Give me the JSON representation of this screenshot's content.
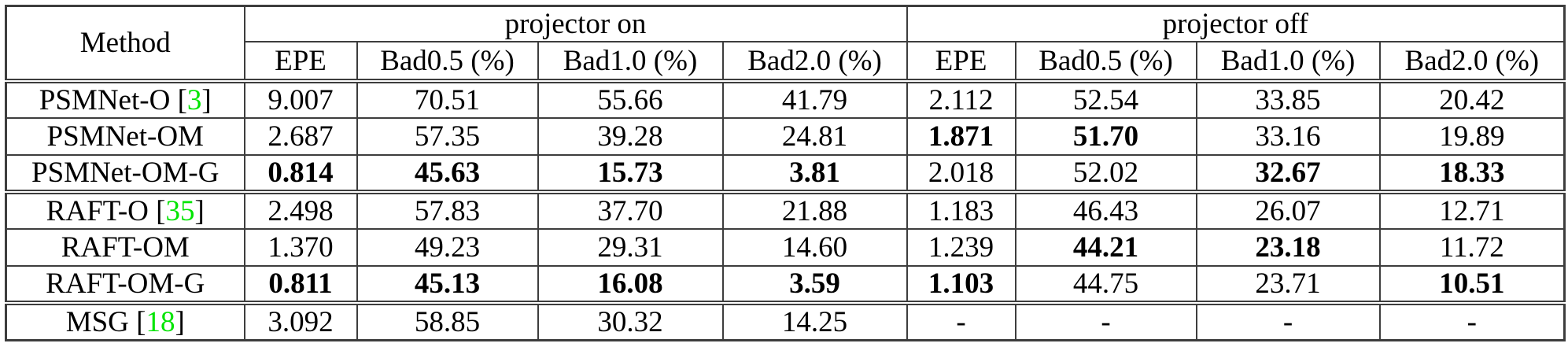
{
  "table": {
    "brackets": {
      "open": " [",
      "close": "]"
    },
    "dash": "-",
    "colors": {
      "citation_green": "#00e400",
      "border_gray": "#3d3d3d",
      "text_black": "#000000",
      "background_white": "#ffffff"
    },
    "header": {
      "method_label": "Method",
      "groups": [
        {
          "label": "projector on"
        },
        {
          "label": "projector off"
        }
      ],
      "sub_columns": [
        "EPE",
        "Bad0.5 (%)",
        "Bad1.0 (%)",
        "Bad2.0 (%)"
      ]
    },
    "rows": [
      {
        "method": "PSMNet-O",
        "cite": "3",
        "group_start": true,
        "on": [
          {
            "text": "9.007",
            "bold": false
          },
          {
            "text": "70.51",
            "bold": false
          },
          {
            "text": "55.66",
            "bold": false
          },
          {
            "text": "41.79",
            "bold": false
          }
        ],
        "off": [
          {
            "text": "2.112",
            "bold": false
          },
          {
            "text": "52.54",
            "bold": false
          },
          {
            "text": "33.85",
            "bold": false
          },
          {
            "text": "20.42",
            "bold": false
          }
        ]
      },
      {
        "method": "PSMNet-OM",
        "cite": null,
        "group_start": false,
        "on": [
          {
            "text": "2.687",
            "bold": false
          },
          {
            "text": "57.35",
            "bold": false
          },
          {
            "text": "39.28",
            "bold": false
          },
          {
            "text": "24.81",
            "bold": false
          }
        ],
        "off": [
          {
            "text": "1.871",
            "bold": true
          },
          {
            "text": "51.70",
            "bold": true
          },
          {
            "text": "33.16",
            "bold": false
          },
          {
            "text": "19.89",
            "bold": false
          }
        ]
      },
      {
        "method": "PSMNet-OM-G",
        "cite": null,
        "group_start": false,
        "on": [
          {
            "text": "0.814",
            "bold": true
          },
          {
            "text": "45.63",
            "bold": true
          },
          {
            "text": "15.73",
            "bold": true
          },
          {
            "text": "3.81",
            "bold": true
          }
        ],
        "off": [
          {
            "text": "2.018",
            "bold": false
          },
          {
            "text": "52.02",
            "bold": false
          },
          {
            "text": "32.67",
            "bold": true
          },
          {
            "text": "18.33",
            "bold": true
          }
        ]
      },
      {
        "method": "RAFT-O",
        "cite": "35",
        "group_start": true,
        "on": [
          {
            "text": "2.498",
            "bold": false
          },
          {
            "text": "57.83",
            "bold": false
          },
          {
            "text": "37.70",
            "bold": false
          },
          {
            "text": "21.88",
            "bold": false
          }
        ],
        "off": [
          {
            "text": "1.183",
            "bold": false
          },
          {
            "text": "46.43",
            "bold": false
          },
          {
            "text": "26.07",
            "bold": false
          },
          {
            "text": "12.71",
            "bold": false
          }
        ]
      },
      {
        "method": "RAFT-OM",
        "cite": null,
        "group_start": false,
        "on": [
          {
            "text": "1.370",
            "bold": false
          },
          {
            "text": "49.23",
            "bold": false
          },
          {
            "text": "29.31",
            "bold": false
          },
          {
            "text": "14.60",
            "bold": false
          }
        ],
        "off": [
          {
            "text": "1.239",
            "bold": false
          },
          {
            "text": "44.21",
            "bold": true
          },
          {
            "text": "23.18",
            "bold": true
          },
          {
            "text": "11.72",
            "bold": false
          }
        ]
      },
      {
        "method": "RAFT-OM-G",
        "cite": null,
        "group_start": false,
        "on": [
          {
            "text": "0.811",
            "bold": true
          },
          {
            "text": "45.13",
            "bold": true
          },
          {
            "text": "16.08",
            "bold": true
          },
          {
            "text": "3.59",
            "bold": true
          }
        ],
        "off": [
          {
            "text": "1.103",
            "bold": true
          },
          {
            "text": "44.75",
            "bold": false
          },
          {
            "text": "23.71",
            "bold": false
          },
          {
            "text": "10.51",
            "bold": true
          }
        ]
      },
      {
        "method": "MSG",
        "cite": "18",
        "group_start": true,
        "on": [
          {
            "text": "3.092",
            "bold": false
          },
          {
            "text": "58.85",
            "bold": false
          },
          {
            "text": "30.32",
            "bold": false
          },
          {
            "text": "14.25",
            "bold": false
          }
        ],
        "off": [
          {
            "text": "-",
            "bold": false
          },
          {
            "text": "-",
            "bold": false
          },
          {
            "text": "-",
            "bold": false
          },
          {
            "text": "-",
            "bold": false
          }
        ]
      }
    ]
  }
}
